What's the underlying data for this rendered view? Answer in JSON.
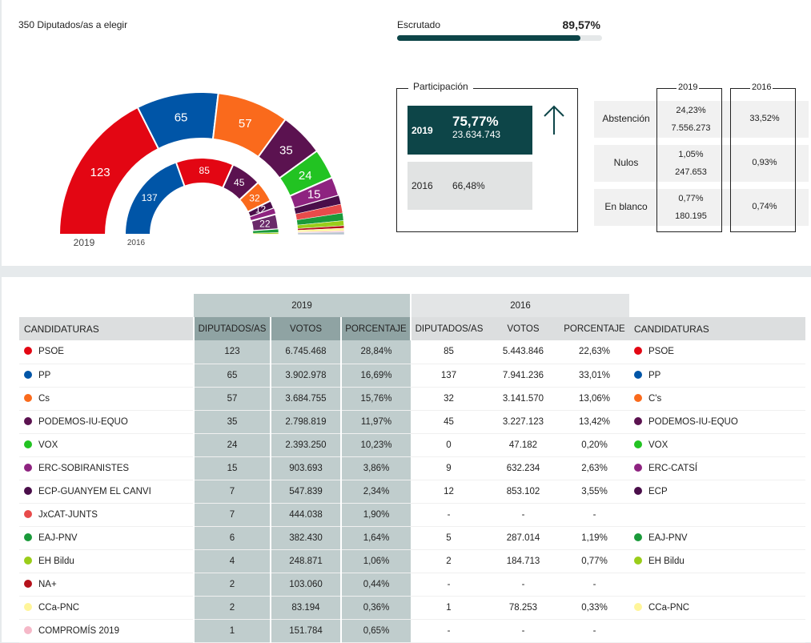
{
  "header": {
    "seats_label": "350 Diputados/as a elegir",
    "escrutado_label": "Escrutado",
    "escrutado_value": "89,57%",
    "escrutado_fraction": 0.8957
  },
  "hemicycle": {
    "total_seats": 350,
    "label_2019": "2019",
    "label_2016": "2016"
  },
  "participacion": {
    "title": "Participación",
    "y2019": {
      "year": "2019",
      "pct": "75,77%",
      "votes": "23.634.743"
    },
    "y2016": {
      "year": "2016",
      "pct": "66,48%"
    },
    "trend_icon": "arrow-up-icon"
  },
  "stats": {
    "col2019": "2019",
    "col2016": "2016",
    "rows": [
      {
        "label": "Abstención",
        "v2019_pct": "24,23%",
        "v2019_votes": "7.556.273",
        "v2016": "33,52%"
      },
      {
        "label": "Nulos",
        "v2019_pct": "1,05%",
        "v2019_votes": "247.653",
        "v2016": "0,93%"
      },
      {
        "label": "En blanco",
        "v2019_pct": "0,77%",
        "v2019_votes": "180.195",
        "v2016": "0,74%"
      }
    ]
  },
  "table": {
    "year2019": "2019",
    "year2016": "2016",
    "headers": {
      "cand": "CANDIDATURAS",
      "dip": "DIPUTADOS/AS",
      "votos": "VOTOS",
      "pct": "PORCENTAJE"
    },
    "rows": [
      {
        "name": "PSOE",
        "color": "#e30613",
        "d19": "123",
        "v19": "6.745.468",
        "p19": "28,84%",
        "d16": "85",
        "v16": "5.443.846",
        "p16": "22,63%",
        "name16": "PSOE",
        "color16": "#e30613"
      },
      {
        "name": "PP",
        "color": "#0055a7",
        "d19": "65",
        "v19": "3.902.978",
        "p19": "16,69%",
        "d16": "137",
        "v16": "7.941.236",
        "p16": "33,01%",
        "name16": "PP",
        "color16": "#0055a7"
      },
      {
        "name": "Cs",
        "color": "#fa6a1c",
        "d19": "57",
        "v19": "3.684.755",
        "p19": "15,76%",
        "d16": "32",
        "v16": "3.141.570",
        "p16": "13,06%",
        "name16": "C's",
        "color16": "#fa6a1c"
      },
      {
        "name": "PODEMOS-IU-EQUO",
        "color": "#5b1250",
        "d19": "35",
        "v19": "2.798.819",
        "p19": "11,97%",
        "d16": "45",
        "v16": "3.227.123",
        "p16": "13,42%",
        "name16": "PODEMOS-IU-EQUO",
        "color16": "#5b1250"
      },
      {
        "name": "VOX",
        "color": "#22c322",
        "d19": "24",
        "v19": "2.393.250",
        "p19": "10,23%",
        "d16": "0",
        "v16": "47.182",
        "p16": "0,20%",
        "name16": "VOX",
        "color16": "#22c322"
      },
      {
        "name": "ERC-SOBIRANISTES",
        "color": "#8e2380",
        "d19": "15",
        "v19": "903.693",
        "p19": "3,86%",
        "d16": "9",
        "v16": "632.234",
        "p16": "2,63%",
        "name16": "ERC-CATSÍ",
        "color16": "#8e2380"
      },
      {
        "name": "ECP-GUANYEM EL CANVI",
        "color": "#4a0e4a",
        "d19": "7",
        "v19": "547.839",
        "p19": "2,34%",
        "d16": "12",
        "v16": "853.102",
        "p16": "3,55%",
        "name16": "ECP",
        "color16": "#4a0e4a"
      },
      {
        "name": "JxCAT-JUNTS",
        "color": "#e84b4b",
        "d19": "7",
        "v19": "444.038",
        "p19": "1,90%",
        "d16": "-",
        "v16": "-",
        "p16": "-",
        "name16": "",
        "color16": ""
      },
      {
        "name": "EAJ-PNV",
        "color": "#1a9a3a",
        "d19": "6",
        "v19": "382.430",
        "p19": "1,64%",
        "d16": "5",
        "v16": "287.014",
        "p16": "1,19%",
        "name16": "EAJ-PNV",
        "color16": "#1a9a3a"
      },
      {
        "name": "EH Bildu",
        "color": "#9acd1a",
        "d19": "4",
        "v19": "248.871",
        "p19": "1,06%",
        "d16": "2",
        "v16": "184.713",
        "p16": "0,77%",
        "name16": "EH Bildu",
        "color16": "#9acd1a"
      },
      {
        "name": "NA+",
        "color": "#b5121b",
        "d19": "2",
        "v19": "103.060",
        "p19": "0,44%",
        "d16": "-",
        "v16": "-",
        "p16": "-",
        "name16": "",
        "color16": ""
      },
      {
        "name": "CCa-PNC",
        "color": "#fff59a",
        "d19": "2",
        "v19": "83.194",
        "p19": "0,36%",
        "d16": "1",
        "v16": "78.253",
        "p16": "0,33%",
        "name16": "CCa-PNC",
        "color16": "#fff59a"
      },
      {
        "name": "COMPROMÍS 2019",
        "color": "#f5b8c8",
        "d19": "1",
        "v19": "151.784",
        "p19": "0,65%",
        "d16": "-",
        "v16": "-",
        "p16": "-",
        "name16": "",
        "color16": ""
      }
    ]
  }
}
